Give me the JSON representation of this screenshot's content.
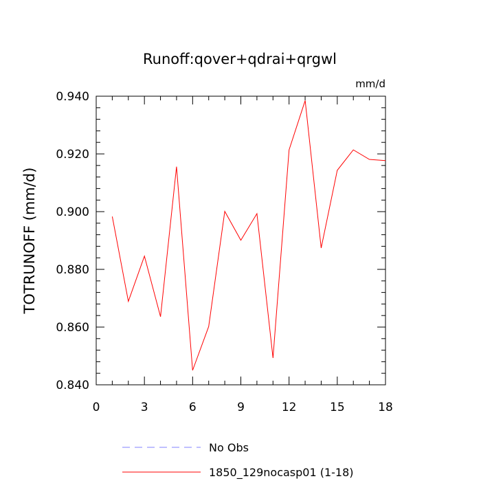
{
  "chart_data": {
    "type": "line",
    "title": "Runoff:qover+qdrai+qrgwl",
    "units": "mm/d",
    "xlabel": "",
    "ylabel": "TOTRUNOFF  (mm/d)",
    "xlim": [
      0,
      18
    ],
    "ylim": [
      0.84,
      0.94
    ],
    "x_ticks": [
      0,
      3,
      6,
      9,
      12,
      15,
      18
    ],
    "x_tick_labels": [
      "0",
      "3",
      "6",
      "9",
      "12",
      "15",
      "18"
    ],
    "y_ticks": [
      0.84,
      0.86,
      0.88,
      0.9,
      0.92,
      0.94
    ],
    "y_tick_labels": [
      "0.840",
      "0.860",
      "0.880",
      "0.900",
      "0.920",
      "0.940"
    ],
    "grid": false,
    "legend_placement": "bottom",
    "series": [
      {
        "name": "1850_129nocasp01 (1-18)",
        "color": "#ff0000",
        "dash": "solid",
        "x": [
          1,
          2,
          3,
          4,
          5,
          6,
          7,
          8,
          9,
          10,
          11,
          12,
          13,
          14,
          15,
          16,
          17,
          18
        ],
        "y": [
          0.8983,
          0.8689,
          0.8846,
          0.8636,
          0.9156,
          0.845,
          0.8602,
          0.9001,
          0.8901,
          0.8993,
          0.8493,
          0.9214,
          0.9385,
          0.8874,
          0.9143,
          0.9214,
          0.9181,
          0.9177
        ]
      }
    ],
    "legend": [
      {
        "label": "No Obs",
        "color": "#8080ff",
        "dash": "dashed"
      },
      {
        "label": "1850_129nocasp01 (1-18)",
        "color": "#ff0000",
        "dash": "solid"
      }
    ]
  }
}
